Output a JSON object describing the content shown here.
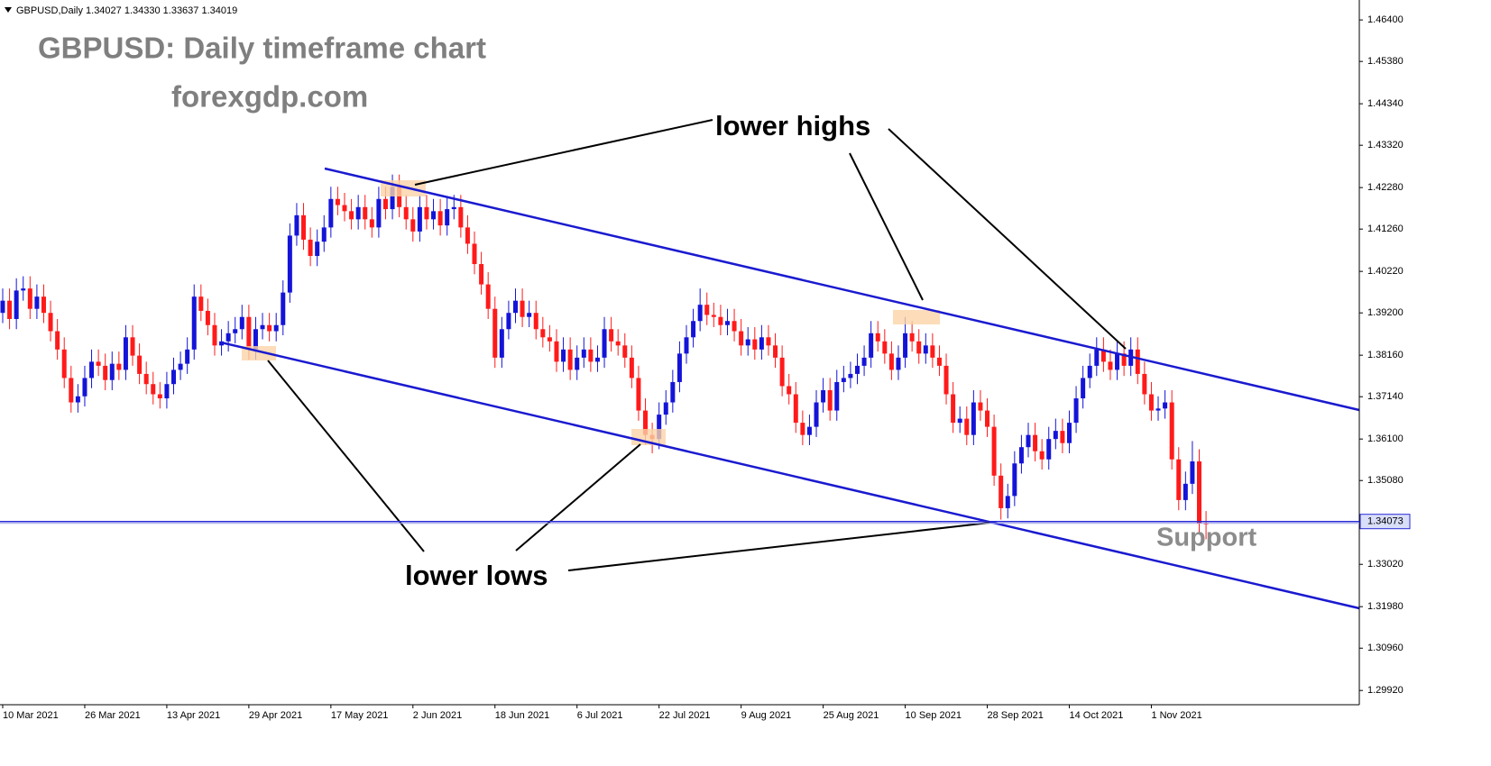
{
  "chart_data": {
    "type": "candlestick",
    "header": "GBPUSD,Daily 1.34027 1.34330 1.33637 1.34019",
    "title": "GBPUSD: Daily timeframe chart",
    "subtitle": "forexgdp.com",
    "annotations": [
      "lower highs",
      "lower lows",
      "Support"
    ],
    "up_color": "#1414d8",
    "down_color": "#ff1a1a",
    "x": [
      "2021-03-10",
      "2021-03-11",
      "2021-03-12",
      "2021-03-15",
      "2021-03-16",
      "2021-03-17",
      "2021-03-18",
      "2021-03-19",
      "2021-03-22",
      "2021-03-23",
      "2021-03-24",
      "2021-03-25",
      "2021-03-26",
      "2021-03-29",
      "2021-03-30",
      "2021-03-31",
      "2021-04-01",
      "2021-04-02",
      "2021-04-05",
      "2021-04-06",
      "2021-04-07",
      "2021-04-08",
      "2021-04-09",
      "2021-04-12",
      "2021-04-13",
      "2021-04-14",
      "2021-04-15",
      "2021-04-16",
      "2021-04-19",
      "2021-04-20",
      "2021-04-21",
      "2021-04-22",
      "2021-04-23",
      "2021-04-26",
      "2021-04-27",
      "2021-04-28",
      "2021-04-29",
      "2021-04-30",
      "2021-05-03",
      "2021-05-04",
      "2021-05-05",
      "2021-05-06",
      "2021-05-07",
      "2021-05-10",
      "2021-05-11",
      "2021-05-12",
      "2021-05-13",
      "2021-05-14",
      "2021-05-17",
      "2021-05-18",
      "2021-05-19",
      "2021-05-20",
      "2021-05-21",
      "2021-05-24",
      "2021-05-25",
      "2021-05-26",
      "2021-05-27",
      "2021-05-28",
      "2021-05-31",
      "2021-06-01",
      "2021-06-02",
      "2021-06-03",
      "2021-06-04",
      "2021-06-07",
      "2021-06-08",
      "2021-06-09",
      "2021-06-10",
      "2021-06-11",
      "2021-06-14",
      "2021-06-15",
      "2021-06-16",
      "2021-06-17",
      "2021-06-18",
      "2021-06-21",
      "2021-06-22",
      "2021-06-23",
      "2021-06-24",
      "2021-06-25",
      "2021-06-28",
      "2021-06-29",
      "2021-06-30",
      "2021-07-01",
      "2021-07-02",
      "2021-07-05",
      "2021-07-06",
      "2021-07-07",
      "2021-07-08",
      "2021-07-09",
      "2021-07-12",
      "2021-07-13",
      "2021-07-14",
      "2021-07-15",
      "2021-07-16",
      "2021-07-19",
      "2021-07-20",
      "2021-07-21",
      "2021-07-22",
      "2021-07-23",
      "2021-07-26",
      "2021-07-27",
      "2021-07-28",
      "2021-07-29",
      "2021-07-30",
      "2021-08-02",
      "2021-08-03",
      "2021-08-04",
      "2021-08-05",
      "2021-08-06",
      "2021-08-09",
      "2021-08-10",
      "2021-08-11",
      "2021-08-12",
      "2021-08-13",
      "2021-08-16",
      "2021-08-17",
      "2021-08-18",
      "2021-08-19",
      "2021-08-20",
      "2021-08-23",
      "2021-08-24",
      "2021-08-25",
      "2021-08-26",
      "2021-08-27",
      "2021-08-30",
      "2021-08-31",
      "2021-09-01",
      "2021-09-02",
      "2021-09-03",
      "2021-09-06",
      "2021-09-07",
      "2021-09-08",
      "2021-09-09",
      "2021-09-10",
      "2021-09-13",
      "2021-09-14",
      "2021-09-15",
      "2021-09-16",
      "2021-09-17",
      "2021-09-20",
      "2021-09-21",
      "2021-09-22",
      "2021-09-23",
      "2021-09-24",
      "2021-09-27",
      "2021-09-28",
      "2021-09-29",
      "2021-09-30",
      "2021-10-01",
      "2021-10-04",
      "2021-10-05",
      "2021-10-06",
      "2021-10-07",
      "2021-10-08",
      "2021-10-11",
      "2021-10-12",
      "2021-10-13",
      "2021-10-14",
      "2021-10-15",
      "2021-10-18",
      "2021-10-19",
      "2021-10-20",
      "2021-10-21",
      "2021-10-22",
      "2021-10-25",
      "2021-10-26",
      "2021-10-27",
      "2021-10-28",
      "2021-10-29",
      "2021-11-01",
      "2021-11-02",
      "2021-11-03",
      "2021-11-04",
      "2021-11-05",
      "2021-11-08",
      "2021-11-09",
      "2021-11-10",
      "2021-11-11"
    ],
    "open": [
      1.392,
      1.395,
      1.3905,
      1.3975,
      1.398,
      1.393,
      1.396,
      1.392,
      1.3875,
      1.383,
      1.376,
      1.37,
      1.3715,
      1.376,
      1.38,
      1.379,
      1.3755,
      1.3795,
      1.378,
      1.386,
      1.3815,
      1.377,
      1.3745,
      1.372,
      1.371,
      1.3745,
      1.378,
      1.3795,
      1.383,
      1.396,
      1.3925,
      1.389,
      1.384,
      1.385,
      1.387,
      1.388,
      1.391,
      1.383,
      1.388,
      1.389,
      1.3875,
      1.389,
      1.397,
      1.411,
      1.416,
      1.41,
      1.406,
      1.4095,
      1.413,
      1.42,
      1.4185,
      1.417,
      1.415,
      1.418,
      1.415,
      1.413,
      1.42,
      1.4175,
      1.423,
      1.418,
      1.415,
      1.412,
      1.418,
      1.415,
      1.417,
      1.4135,
      1.4175,
      1.418,
      1.413,
      1.409,
      1.404,
      1.399,
      1.393,
      1.381,
      1.388,
      1.392,
      1.395,
      1.391,
      1.392,
      1.388,
      1.386,
      1.385,
      1.38,
      1.383,
      1.378,
      1.381,
      1.383,
      1.38,
      1.381,
      1.388,
      1.385,
      1.384,
      1.381,
      1.376,
      1.368,
      1.362,
      1.361,
      1.367,
      1.37,
      1.375,
      1.382,
      1.386,
      1.39,
      1.394,
      1.3915,
      1.391,
      1.389,
      1.39,
      1.3875,
      1.384,
      1.3855,
      1.383,
      1.386,
      1.384,
      1.381,
      1.374,
      1.372,
      1.365,
      1.362,
      1.364,
      1.37,
      1.373,
      1.368,
      1.375,
      1.376,
      1.377,
      1.379,
      1.381,
      1.387,
      1.385,
      1.382,
      1.378,
      1.381,
      1.387,
      1.385,
      1.382,
      1.384,
      1.381,
      1.379,
      1.372,
      1.365,
      1.366,
      1.362,
      1.37,
      1.368,
      1.364,
      1.352,
      1.344,
      1.347,
      1.355,
      1.359,
      1.362,
      1.358,
      1.356,
      1.361,
      1.363,
      1.36,
      1.365,
      1.371,
      1.376,
      1.379,
      1.383,
      1.38,
      1.378,
      1.382,
      1.379,
      1.383,
      1.377,
      1.372,
      1.368,
      1.3685,
      1.37,
      1.356,
      1.346,
      1.35,
      1.3555,
      1.34027
    ],
    "high": [
      1.398,
      1.398,
      1.4005,
      1.401,
      1.401,
      1.399,
      1.399,
      1.395,
      1.3905,
      1.386,
      1.379,
      1.3745,
      1.379,
      1.383,
      1.383,
      1.382,
      1.3825,
      1.3825,
      1.389,
      1.389,
      1.3845,
      1.38,
      1.3775,
      1.375,
      1.3775,
      1.381,
      1.3825,
      1.386,
      1.399,
      1.399,
      1.3955,
      1.392,
      1.388,
      1.39,
      1.391,
      1.394,
      1.394,
      1.391,
      1.392,
      1.392,
      1.392,
      1.4,
      1.414,
      1.419,
      1.419,
      1.413,
      1.4125,
      1.416,
      1.423,
      1.423,
      1.4215,
      1.42,
      1.421,
      1.421,
      1.418,
      1.423,
      1.423,
      1.426,
      1.426,
      1.421,
      1.418,
      1.421,
      1.421,
      1.42,
      1.42,
      1.4205,
      1.421,
      1.421,
      1.416,
      1.412,
      1.407,
      1.402,
      1.396,
      1.391,
      1.395,
      1.398,
      1.398,
      1.395,
      1.395,
      1.391,
      1.389,
      1.388,
      1.386,
      1.386,
      1.384,
      1.386,
      1.386,
      1.384,
      1.391,
      1.391,
      1.388,
      1.387,
      1.384,
      1.379,
      1.371,
      1.365,
      1.37,
      1.373,
      1.378,
      1.385,
      1.389,
      1.393,
      1.398,
      1.397,
      1.3945,
      1.394,
      1.393,
      1.393,
      1.3905,
      1.3885,
      1.3885,
      1.389,
      1.389,
      1.387,
      1.384,
      1.377,
      1.375,
      1.368,
      1.367,
      1.373,
      1.376,
      1.376,
      1.378,
      1.379,
      1.38,
      1.382,
      1.384,
      1.39,
      1.39,
      1.388,
      1.385,
      1.384,
      1.391,
      1.39,
      1.388,
      1.387,
      1.387,
      1.384,
      1.382,
      1.375,
      1.369,
      1.369,
      1.373,
      1.373,
      1.371,
      1.367,
      1.355,
      1.35,
      1.358,
      1.362,
      1.365,
      1.365,
      1.361,
      1.364,
      1.366,
      1.366,
      1.368,
      1.374,
      1.379,
      1.382,
      1.386,
      1.386,
      1.383,
      1.385,
      1.385,
      1.386,
      1.386,
      1.38,
      1.375,
      1.3715,
      1.373,
      1.373,
      1.359,
      1.353,
      1.3605,
      1.3585,
      1.3433
    ],
    "low": [
      1.3895,
      1.388,
      1.388,
      1.395,
      1.3905,
      1.3905,
      1.3895,
      1.385,
      1.3805,
      1.3735,
      1.3675,
      1.3675,
      1.369,
      1.3735,
      1.3765,
      1.373,
      1.373,
      1.3755,
      1.3755,
      1.379,
      1.3745,
      1.372,
      1.3695,
      1.3685,
      1.3685,
      1.372,
      1.3755,
      1.377,
      1.3805,
      1.39,
      1.3865,
      1.3815,
      1.3815,
      1.3825,
      1.3845,
      1.3855,
      1.3805,
      1.3805,
      1.3855,
      1.385,
      1.385,
      1.3865,
      1.3945,
      1.4085,
      1.4075,
      1.4035,
      1.4035,
      1.407,
      1.4105,
      1.416,
      1.4145,
      1.4125,
      1.4125,
      1.4125,
      1.4105,
      1.4105,
      1.415,
      1.415,
      1.4155,
      1.4125,
      1.4095,
      1.4095,
      1.4125,
      1.4125,
      1.411,
      1.411,
      1.415,
      1.4105,
      1.4065,
      1.4015,
      1.3965,
      1.3905,
      1.3785,
      1.3785,
      1.3855,
      1.3895,
      1.3885,
      1.3885,
      1.3855,
      1.3835,
      1.3825,
      1.3775,
      1.3775,
      1.3755,
      1.3755,
      1.3785,
      1.3775,
      1.3775,
      1.3785,
      1.3825,
      1.3815,
      1.3785,
      1.3735,
      1.3655,
      1.3595,
      1.3575,
      1.3585,
      1.3645,
      1.3675,
      1.3725,
      1.3795,
      1.3835,
      1.3875,
      1.389,
      1.3885,
      1.3865,
      1.3865,
      1.385,
      1.3815,
      1.3815,
      1.3805,
      1.3805,
      1.3815,
      1.3785,
      1.3715,
      1.3695,
      1.3625,
      1.3595,
      1.3595,
      1.3615,
      1.3675,
      1.3655,
      1.3655,
      1.3725,
      1.3735,
      1.3745,
      1.3765,
      1.3785,
      1.3825,
      1.3795,
      1.3755,
      1.3755,
      1.3785,
      1.3825,
      1.3795,
      1.3795,
      1.3785,
      1.3765,
      1.3695,
      1.3625,
      1.3625,
      1.3595,
      1.3595,
      1.3655,
      1.3615,
      1.3495,
      1.3412,
      1.3415,
      1.3445,
      1.3525,
      1.3565,
      1.3555,
      1.3535,
      1.3535,
      1.3585,
      1.3575,
      1.3575,
      1.3625,
      1.3685,
      1.3735,
      1.3765,
      1.3775,
      1.3755,
      1.3755,
      1.3765,
      1.3765,
      1.3745,
      1.3695,
      1.3655,
      1.3655,
      1.366,
      1.3535,
      1.3435,
      1.3435,
      1.3475,
      1.3378,
      1.33637
    ],
    "close": [
      1.395,
      1.3905,
      1.3975,
      1.398,
      1.393,
      1.396,
      1.392,
      1.3875,
      1.383,
      1.376,
      1.37,
      1.3715,
      1.376,
      1.38,
      1.379,
      1.3755,
      1.3795,
      1.378,
      1.386,
      1.3815,
      1.377,
      1.3745,
      1.372,
      1.371,
      1.3745,
      1.378,
      1.3795,
      1.383,
      1.396,
      1.3925,
      1.389,
      1.384,
      1.385,
      1.387,
      1.388,
      1.391,
      1.383,
      1.388,
      1.389,
      1.3875,
      1.389,
      1.397,
      1.411,
      1.416,
      1.41,
      1.406,
      1.4095,
      1.413,
      1.42,
      1.4185,
      1.417,
      1.415,
      1.418,
      1.415,
      1.413,
      1.42,
      1.4175,
      1.423,
      1.418,
      1.415,
      1.412,
      1.418,
      1.415,
      1.417,
      1.4135,
      1.4175,
      1.418,
      1.413,
      1.409,
      1.404,
      1.399,
      1.393,
      1.381,
      1.388,
      1.392,
      1.395,
      1.391,
      1.392,
      1.388,
      1.386,
      1.385,
      1.38,
      1.383,
      1.378,
      1.381,
      1.383,
      1.38,
      1.381,
      1.388,
      1.385,
      1.384,
      1.381,
      1.376,
      1.368,
      1.362,
      1.361,
      1.367,
      1.37,
      1.375,
      1.382,
      1.386,
      1.39,
      1.394,
      1.3915,
      1.391,
      1.389,
      1.39,
      1.3875,
      1.384,
      1.3855,
      1.383,
      1.386,
      1.384,
      1.381,
      1.374,
      1.372,
      1.365,
      1.362,
      1.364,
      1.37,
      1.373,
      1.368,
      1.375,
      1.376,
      1.377,
      1.379,
      1.381,
      1.387,
      1.385,
      1.382,
      1.378,
      1.381,
      1.387,
      1.385,
      1.382,
      1.384,
      1.381,
      1.379,
      1.372,
      1.365,
      1.366,
      1.362,
      1.37,
      1.368,
      1.364,
      1.352,
      1.344,
      1.347,
      1.355,
      1.359,
      1.362,
      1.358,
      1.356,
      1.361,
      1.363,
      1.36,
      1.365,
      1.371,
      1.376,
      1.379,
      1.383,
      1.38,
      1.378,
      1.382,
      1.379,
      1.383,
      1.377,
      1.372,
      1.368,
      1.3685,
      1.37,
      1.356,
      1.346,
      1.35,
      1.3555,
      1.34027,
      1.34019
    ],
    "price_line": 1.34073,
    "ylim": [
      1.2957,
      1.4689
    ],
    "yticks": [
      {
        "value": 1.464,
        "label": "1.46400"
      },
      {
        "value": 1.4538,
        "label": "1.45380"
      },
      {
        "value": 1.4434,
        "label": "1.44340"
      },
      {
        "value": 1.4332,
        "label": "1.43320"
      },
      {
        "value": 1.4228,
        "label": "1.42280"
      },
      {
        "value": 1.4126,
        "label": "1.41260"
      },
      {
        "value": 1.4022,
        "label": "1.40220"
      },
      {
        "value": 1.392,
        "label": "1.39200"
      },
      {
        "value": 1.3816,
        "label": "1.38160"
      },
      {
        "value": 1.3714,
        "label": "1.37140"
      },
      {
        "value": 1.361,
        "label": "1.36100"
      },
      {
        "value": 1.3508,
        "label": "1.35080"
      },
      {
        "value": 1.3302,
        "label": "1.33020"
      },
      {
        "value": 1.3198,
        "label": "1.31980"
      },
      {
        "value": 1.3096,
        "label": "1.30960"
      },
      {
        "value": 1.2992,
        "label": "1.29920"
      }
    ],
    "xticks": [
      {
        "value": "2021-03-10",
        "label": "10 Mar 2021"
      },
      {
        "value": "2021-03-26",
        "label": "26 Mar 2021"
      },
      {
        "value": "2021-04-13",
        "label": "13 Apr 2021"
      },
      {
        "value": "2021-04-29",
        "label": "29 Apr 2021"
      },
      {
        "value": "2021-05-17",
        "label": "17 May 2021"
      },
      {
        "value": "2021-06-02",
        "label": "2 Jun 2021"
      },
      {
        "value": "2021-06-18",
        "label": "18 Jun 2021"
      },
      {
        "value": "2021-07-06",
        "label": "6 Jul 2021"
      },
      {
        "value": "2021-07-22",
        "label": "22 Jul 2021"
      },
      {
        "value": "2021-08-09",
        "label": "9 Aug 2021"
      },
      {
        "value": "2021-08-25",
        "label": "25 Aug 2021"
      },
      {
        "value": "2021-09-10",
        "label": "10 Sep 2021"
      },
      {
        "value": "2021-09-28",
        "label": "28 Sep 2021"
      },
      {
        "value": "2021-10-14",
        "label": "14 Oct 2021"
      },
      {
        "value": "2021-11-01",
        "label": "1 Nov 2021"
      }
    ]
  }
}
